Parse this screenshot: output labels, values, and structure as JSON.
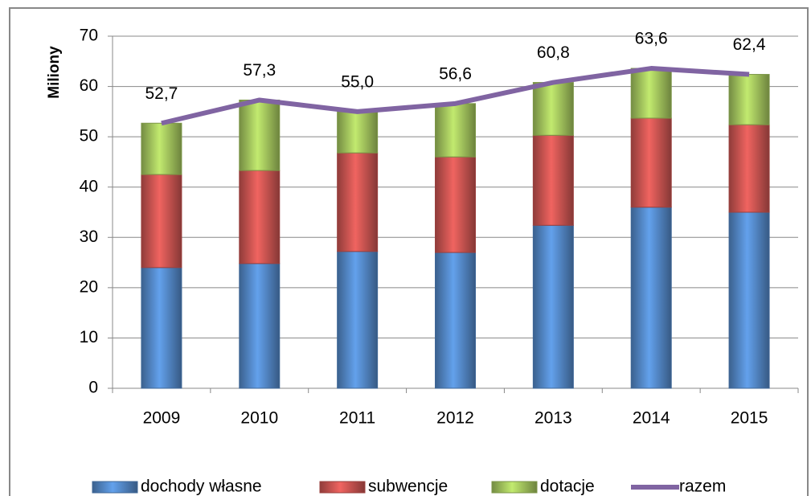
{
  "chart_data": {
    "type": "bar",
    "stacked": true,
    "y_label": "Miliony",
    "categories": [
      "2009",
      "2010",
      "2011",
      "2012",
      "2013",
      "2014",
      "2015"
    ],
    "series": [
      {
        "name": "dochody własne",
        "color": "#4f81bd",
        "values": [
          24.0,
          24.8,
          27.2,
          27.0,
          32.4,
          36.0,
          35.0
        ]
      },
      {
        "name": "subwencje",
        "color": "#c0504d",
        "values": [
          18.5,
          18.5,
          19.6,
          19.0,
          17.9,
          17.7,
          17.4
        ]
      },
      {
        "name": "dotacje",
        "color": "#9bbb59",
        "values": [
          10.2,
          14.0,
          8.2,
          10.6,
          10.5,
          9.9,
          10.0
        ]
      },
      {
        "name": "razem",
        "type": "line",
        "color": "#8064a2",
        "values": [
          52.7,
          57.3,
          55.0,
          56.6,
          60.8,
          63.6,
          62.4
        ],
        "value_labels": [
          "52,7",
          "57,3",
          "55,0",
          "56,6",
          "60,8",
          "63,6",
          "62,4"
        ]
      }
    ],
    "ylim": [
      0,
      70
    ],
    "yticks": [
      0,
      10,
      20,
      30,
      40,
      50,
      60,
      70
    ],
    "grid": true,
    "legend": "bottom"
  }
}
